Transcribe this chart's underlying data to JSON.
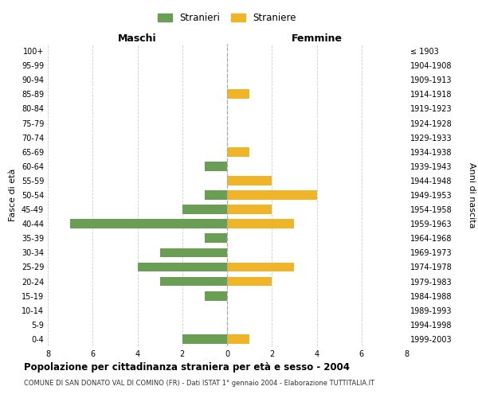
{
  "age_groups": [
    "100+",
    "95-99",
    "90-94",
    "85-89",
    "80-84",
    "75-79",
    "70-74",
    "65-69",
    "60-64",
    "55-59",
    "50-54",
    "45-49",
    "40-44",
    "35-39",
    "30-34",
    "25-29",
    "20-24",
    "15-19",
    "10-14",
    "5-9",
    "0-4"
  ],
  "birth_years": [
    "≤ 1903",
    "1904-1908",
    "1909-1913",
    "1914-1918",
    "1919-1923",
    "1924-1928",
    "1929-1933",
    "1934-1938",
    "1939-1943",
    "1944-1948",
    "1949-1953",
    "1954-1958",
    "1959-1963",
    "1964-1968",
    "1969-1973",
    "1974-1978",
    "1979-1983",
    "1984-1988",
    "1989-1993",
    "1994-1998",
    "1999-2003"
  ],
  "males": [
    0,
    0,
    0,
    0,
    0,
    0,
    0,
    0,
    1,
    0,
    1,
    2,
    7,
    1,
    3,
    4,
    3,
    1,
    0,
    0,
    2
  ],
  "females": [
    0,
    0,
    0,
    1,
    0,
    0,
    0,
    1,
    0,
    2,
    4,
    2,
    3,
    0,
    0,
    3,
    2,
    0,
    0,
    0,
    1
  ],
  "male_color": "#6a9e55",
  "female_color": "#f0b429",
  "grid_color": "#cccccc",
  "title": "Popolazione per cittadinanza straniera per età e sesso - 2004",
  "subtitle": "COMUNE DI SAN DONATO VAL DI COMINO (FR) - Dati ISTAT 1° gennaio 2004 - Elaborazione TUTTITALIA.IT",
  "xlabel_left": "Maschi",
  "xlabel_right": "Femmine",
  "ylabel_left": "Fasce di età",
  "ylabel_right": "Anni di nascita",
  "legend_male": "Stranieri",
  "legend_female": "Straniere",
  "xlim": 8,
  "background_color": "#ffffff"
}
